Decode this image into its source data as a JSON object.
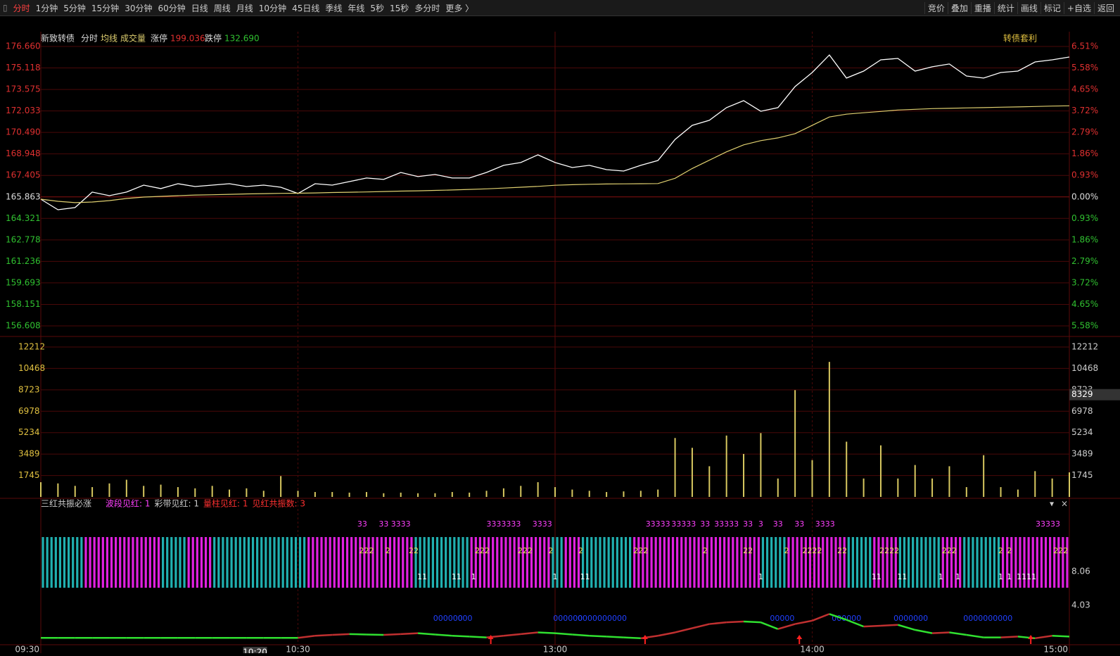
{
  "toolbar": {
    "periods": [
      "分时",
      "1分钟",
      "5分钟",
      "15分钟",
      "30分钟",
      "60分钟",
      "日线",
      "周线",
      "月线",
      "10分钟",
      "45日线",
      "季线",
      "年线",
      "5秒",
      "15秒",
      "多分时",
      "更多 〉"
    ],
    "tools": [
      "竞价",
      "叠加",
      "重播",
      "统计",
      "画线",
      "标记",
      "+自选",
      "返回"
    ]
  },
  "info_bar": {
    "name": "新致转债",
    "limit_up_label": "涨停",
    "limit_up": "199.036",
    "limit_down_label": "跌停",
    "limit_down": "132.690",
    "right_button": "转债套利"
  },
  "chart_data": [
    {
      "type": "line",
      "x": [
        "09:30",
        "09:34",
        "09:38",
        "09:42",
        "09:46",
        "09:50",
        "09:54",
        "09:58",
        "10:02",
        "10:06",
        "10:10",
        "10:14",
        "10:18",
        "10:22",
        "10:26",
        "10:30",
        "10:34",
        "10:38",
        "10:42",
        "10:46",
        "10:50",
        "10:54",
        "10:58",
        "11:02",
        "11:06",
        "11:10",
        "11:14",
        "11:18",
        "11:22",
        "11:26",
        "13:00",
        "13:04",
        "13:08",
        "13:12",
        "13:16",
        "13:20",
        "13:24",
        "13:28",
        "13:32",
        "13:36",
        "13:40",
        "13:44",
        "13:48",
        "13:52",
        "13:56",
        "14:00",
        "14:04",
        "14:08",
        "14:12",
        "14:16",
        "14:20",
        "14:24",
        "14:28",
        "14:32",
        "14:36",
        "14:40",
        "14:44",
        "14:48",
        "14:52",
        "14:56",
        "15:00"
      ],
      "series": [
        {
          "name": "分时",
          "color": "#ffffff",
          "values": [
            165.7,
            164.94,
            165.1,
            166.21,
            165.95,
            166.21,
            166.71,
            166.46,
            166.81,
            166.61,
            166.71,
            166.81,
            166.61,
            166.71,
            166.56,
            166.11,
            166.81,
            166.71,
            166.96,
            167.22,
            167.12,
            167.62,
            167.32,
            167.47,
            167.22,
            167.22,
            167.62,
            168.13,
            168.33,
            168.88,
            168.33,
            167.97,
            168.13,
            167.82,
            167.72,
            168.13,
            168.48,
            169.99,
            171.0,
            171.36,
            172.27,
            172.77,
            172.01,
            172.27,
            173.78,
            174.79,
            176.05,
            174.39,
            174.89,
            175.7,
            175.8,
            174.89,
            175.2,
            175.4,
            174.54,
            174.39,
            174.79,
            174.89,
            175.55,
            175.7,
            175.9
          ]
        },
        {
          "name": "均线",
          "color": "#e0d070",
          "values": [
            165.7,
            165.55,
            165.45,
            165.5,
            165.6,
            165.75,
            165.85,
            165.9,
            165.95,
            166.0,
            166.02,
            166.05,
            166.08,
            166.1,
            166.12,
            166.13,
            166.15,
            166.18,
            166.2,
            166.22,
            166.25,
            166.28,
            166.3,
            166.33,
            166.36,
            166.4,
            166.44,
            166.5,
            166.56,
            166.62,
            166.7,
            166.74,
            166.77,
            166.79,
            166.8,
            166.81,
            166.82,
            167.2,
            167.9,
            168.5,
            169.1,
            169.6,
            169.9,
            170.1,
            170.4,
            171.0,
            171.6,
            171.8,
            171.9,
            172.0,
            172.1,
            172.15,
            172.2,
            172.22,
            172.25,
            172.27,
            172.3,
            172.32,
            172.35,
            172.38,
            172.4
          ]
        }
      ],
      "ylim": [
        156.608,
        176.66
      ],
      "yticks": [
        {
          "value": 176.66,
          "label": "176.660"
        },
        175.118,
        173.575,
        172.033,
        {
          "value": 170.49,
          "label": "170.490"
        },
        168.948,
        167.405,
        165.863,
        164.321,
        162.778,
        161.236,
        159.693,
        158.151,
        156.608
      ],
      "y2lim": [
        -5.58,
        6.51
      ],
      "y2ticks": [
        {
          "value": 6.51,
          "label": "6.51%"
        },
        {
          "value": 5.58,
          "label": "5.58%"
        },
        {
          "value": 4.65,
          "label": "4.65%"
        },
        {
          "value": 3.72,
          "label": "3.72%"
        },
        {
          "value": 2.79,
          "label": "2.79%"
        },
        {
          "value": 1.86,
          "label": "1.86%"
        },
        {
          "value": 0.93,
          "label": "0.93%"
        },
        {
          "value": 0,
          "label": "0.00%"
        },
        {
          "value": -0.93,
          "label": "0.93%"
        },
        {
          "value": -1.86,
          "label": "1.86%"
        },
        {
          "value": -2.79,
          "label": "2.79%"
        },
        {
          "value": -3.72,
          "label": "3.72%"
        },
        {
          "value": -4.65,
          "label": "4.65%"
        },
        {
          "value": -5.58,
          "label": "5.58%"
        }
      ],
      "base": 165.863,
      "up_color": "#e03030",
      "down_color": "#30c030",
      "flat_color": "#dddddd",
      "xticks": [
        "09:30",
        "10:30",
        "13:00",
        "14:00",
        "15:00"
      ],
      "cursor_time": "10:20"
    },
    {
      "type": "bar",
      "series": [
        {
          "name": "成交量",
          "color": "#d8c860",
          "values": [
            1200,
            1100,
            900,
            800,
            1100,
            1400,
            900,
            1000,
            800,
            700,
            900,
            600,
            700,
            500,
            1700,
            500,
            400,
            400,
            350,
            400,
            300,
            350,
            300,
            300,
            400,
            350,
            500,
            700,
            900,
            1200,
            800,
            600,
            500,
            400,
            450,
            500,
            600,
            4800,
            4000,
            2500,
            5000,
            3500,
            5200,
            1500,
            8700,
            3000,
            11000,
            4500,
            1500,
            4200,
            1500,
            2600,
            1500,
            2500,
            800,
            3400,
            800,
            600,
            2100,
            1500,
            2000
          ]
        }
      ],
      "ylim": [
        0,
        12212
      ],
      "yticks": [
        12212,
        10468,
        8723,
        6978,
        5234,
        3489,
        1745
      ],
      "cursor_value": 8329
    },
    {
      "type": "indicator",
      "title": "三红共振必涨",
      "stats": [
        {
          "text": "波段见红: 1",
          "color": "#ff40ff"
        },
        {
          "text": "彩带见红: 1",
          "color": "#cccccc"
        },
        {
          "text": "量柱见红: 1",
          "color": "#ff3030"
        },
        {
          "text": "见红共振数: 3",
          "color": "#ff3030"
        }
      ],
      "runs": [
        {
          "color": "#20b0b0",
          "end": "09:40"
        },
        {
          "color": "#e020e0",
          "end": "09:58"
        },
        {
          "color": "#20b0b0",
          "end": "10:04"
        },
        {
          "color": "#e020e0",
          "end": "10:10"
        },
        {
          "color": "#20b0b0",
          "end": "10:32"
        },
        {
          "color": "#e020e0",
          "end": "10:57"
        },
        {
          "color": "#20b0b0",
          "end": "11:10"
        },
        {
          "color": "#e020e0",
          "end": "11:29"
        },
        {
          "color": "#20b0b0",
          "end": "13:02"
        },
        {
          "color": "#e020e0",
          "end": "13:06"
        },
        {
          "color": "#20b0b0",
          "end": "13:18"
        },
        {
          "color": "#e020e0",
          "end": "13:48"
        },
        {
          "color": "#20b0b0",
          "end": "13:54"
        },
        {
          "color": "#e020e0",
          "end": "14:08"
        },
        {
          "color": "#20b0b0",
          "end": "14:14"
        },
        {
          "color": "#e020e0",
          "end": "14:20"
        },
        {
          "color": "#20b0b0",
          "end": "14:30"
        },
        {
          "color": "#e020e0",
          "end": "14:35"
        },
        {
          "color": "#20b0b0",
          "end": "14:44"
        },
        {
          "color": "#e020e0",
          "end": "15:00"
        }
      ],
      "label_rows": [
        {
          "color": "#ff40ff",
          "labels": [
            {
              "time": "10:45",
              "text": "33"
            },
            {
              "time": "10:50",
              "text": "33"
            },
            {
              "time": "10:54",
              "text": "3333"
            },
            {
              "time": "11:18",
              "text": "3333333"
            },
            {
              "time": "11:27",
              "text": "3333"
            },
            {
              "time": "13:24",
              "text": "33333"
            },
            {
              "time": "13:30",
              "text": "33333"
            },
            {
              "time": "13:35",
              "text": "33"
            },
            {
              "time": "13:40",
              "text": "33333"
            },
            {
              "time": "13:45",
              "text": "33"
            },
            {
              "time": "13:48",
              "text": "3"
            },
            {
              "time": "13:52",
              "text": "33"
            },
            {
              "time": "13:57",
              "text": "33"
            },
            {
              "time": "14:03",
              "text": "3333"
            },
            {
              "time": "14:55",
              "text": "33333"
            }
          ]
        },
        {
          "color": "#f0e060",
          "labels": [
            {
              "time": "10:46",
              "text": "222"
            },
            {
              "time": "10:51",
              "text": "2"
            },
            {
              "time": "10:57",
              "text": "22"
            },
            {
              "time": "11:13",
              "text": "222"
            },
            {
              "time": "11:23",
              "text": "222"
            },
            {
              "time": "11:29",
              "text": "2"
            },
            {
              "time": "13:06",
              "text": "2"
            },
            {
              "time": "13:20",
              "text": "222"
            },
            {
              "time": "13:35",
              "text": "2"
            },
            {
              "time": "13:45",
              "text": "22"
            },
            {
              "time": "13:54",
              "text": "2"
            },
            {
              "time": "14:00",
              "text": "2222"
            },
            {
              "time": "14:07",
              "text": "22"
            },
            {
              "time": "14:18",
              "text": "2222"
            },
            {
              "time": "14:32",
              "text": "222"
            },
            {
              "time": "14:44",
              "text": "2"
            },
            {
              "time": "14:46",
              "text": "2"
            },
            {
              "time": "14:58",
              "text": "222"
            }
          ]
        },
        {
          "color": "#ffffff",
          "labels": [
            {
              "time": "10:59",
              "text": "11"
            },
            {
              "time": "11:07",
              "text": "11"
            },
            {
              "time": "11:11",
              "text": "1"
            },
            {
              "time": "13:00",
              "text": "1"
            },
            {
              "time": "13:07",
              "text": "11"
            },
            {
              "time": "13:48",
              "text": "1"
            },
            {
              "time": "14:15",
              "text": "11"
            },
            {
              "time": "14:21",
              "text": "11"
            },
            {
              "time": "14:30",
              "text": "1"
            },
            {
              "time": "14:34",
              "text": "1"
            },
            {
              "time": "14:44",
              "text": "1"
            },
            {
              "time": "14:46",
              "text": "1"
            },
            {
              "time": "14:50",
              "text": "1111"
            }
          ]
        },
        {
          "color": "#2040ff",
          "labels": [
            {
              "time": "11:05",
              "text": "000000"
            },
            {
              "time": "11:09",
              "text": "000"
            },
            {
              "time": "13:03",
              "text": "000000"
            },
            {
              "time": "13:11",
              "text": "0000000000"
            },
            {
              "time": "13:53",
              "text": "00000"
            },
            {
              "time": "14:08",
              "text": "000000"
            },
            {
              "time": "14:23",
              "text": "0000000"
            },
            {
              "time": "14:41",
              "text": "0000000000"
            }
          ]
        }
      ],
      "signals": [
        "11:15",
        "13:21",
        "13:57",
        "14:51"
      ],
      "signal_color": "#ff2020",
      "values": [
        0.15,
        0.15,
        0.15,
        0.15,
        0.15,
        0.15,
        0.15,
        0.15,
        0.15,
        0.15,
        0.15,
        0.15,
        0.15,
        0.15,
        0.15,
        0.15,
        0.4,
        0.5,
        0.6,
        0.55,
        0.5,
        0.6,
        0.7,
        0.55,
        0.4,
        0.3,
        0.2,
        0.4,
        0.6,
        0.8,
        0.7,
        0.55,
        0.4,
        0.3,
        0.2,
        0.1,
        0.4,
        0.8,
        1.3,
        1.8,
        2.0,
        2.1,
        2.0,
        1.2,
        1.8,
        2.2,
        3.0,
        2.3,
        1.5,
        1.6,
        1.7,
        1.1,
        0.7,
        0.8,
        0.5,
        0.2,
        0.2,
        0.3,
        0.1,
        0.4,
        0.3
      ],
      "up_color": "#c03030",
      "down_color": "#30e030",
      "ylim": [
        0,
        8.06
      ],
      "yticks": [
        8.06,
        4.03
      ]
    }
  ]
}
